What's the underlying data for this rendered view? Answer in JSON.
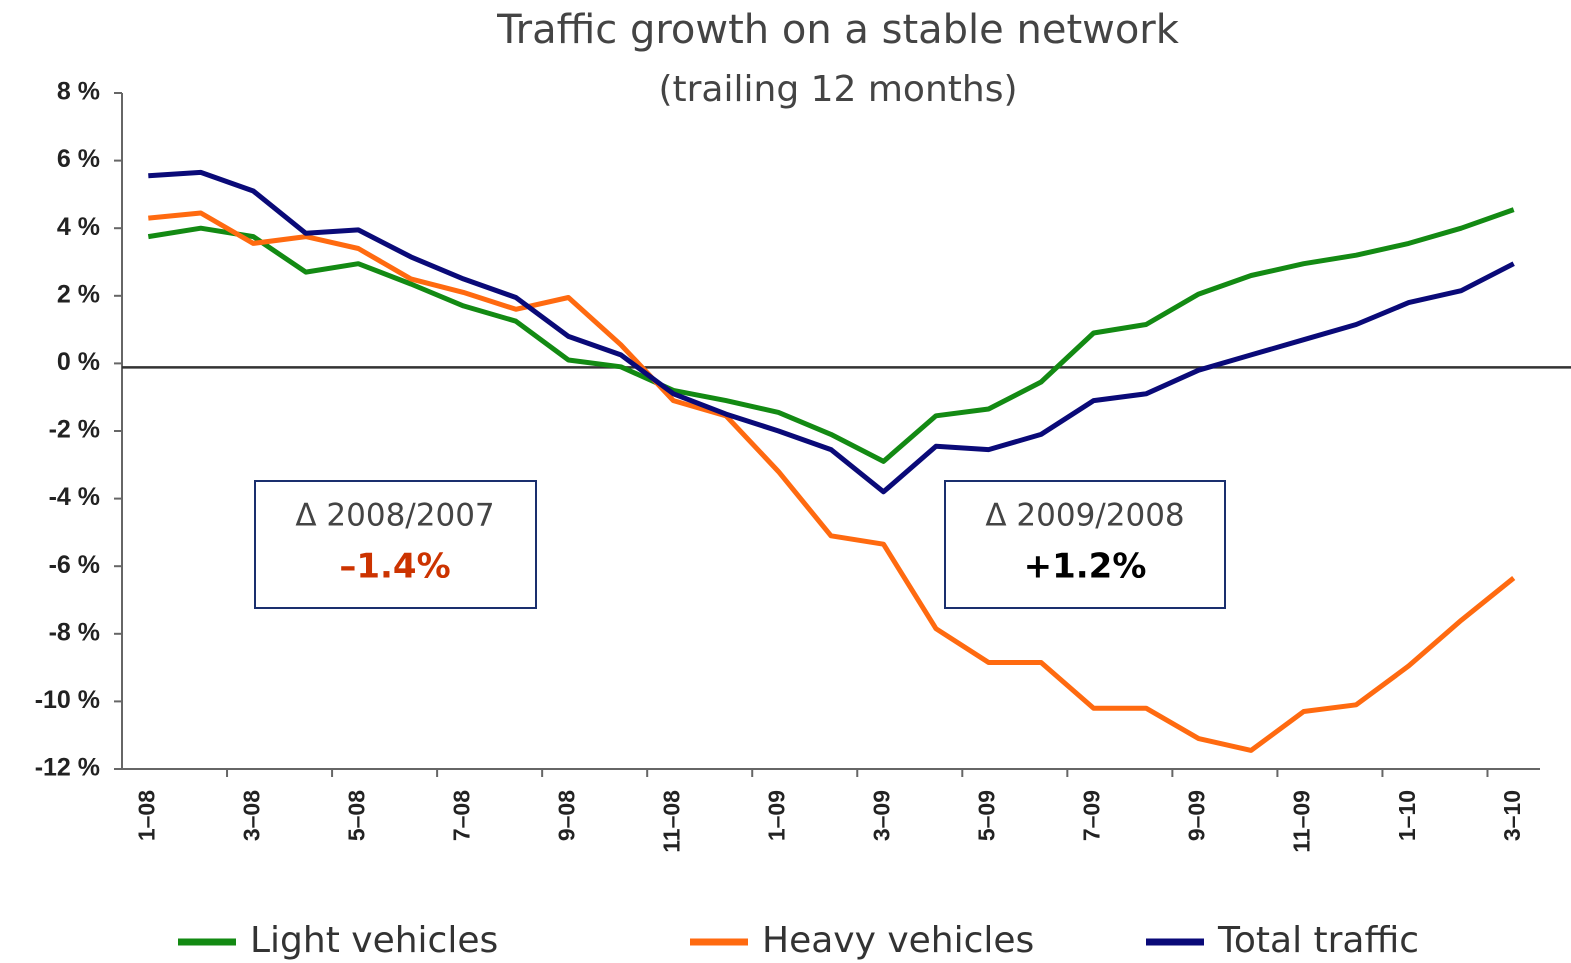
{
  "chart_data": {
    "type": "line",
    "title": "Traffic growth on a stable network",
    "subtitle": "(trailing 12 months)",
    "categories": [
      "1–08",
      null,
      "3–08",
      null,
      "5–08",
      null,
      "7–08",
      null,
      "9–08",
      null,
      "11–08",
      null,
      "1–09",
      null,
      "3–09",
      null,
      "5–09",
      null,
      "7–09",
      null,
      "9–09",
      null,
      "11–09",
      null,
      "1–10",
      null,
      "3–10"
    ],
    "series": [
      {
        "name": "Light vehicles",
        "color": "#138a13",
        "values": [
          3.75,
          4.0,
          3.75,
          2.7,
          2.95,
          2.35,
          1.7,
          1.25,
          0.1,
          -0.1,
          -0.8,
          -1.1,
          -1.45,
          -2.1,
          -2.9,
          -1.55,
          -1.35,
          -0.55,
          0.9,
          1.15,
          2.05,
          2.6,
          2.95,
          3.2,
          3.55,
          4.0,
          4.55
        ]
      },
      {
        "name": "Heavy vehicles",
        "color": "#ff6a10",
        "values": [
          4.3,
          4.45,
          3.55,
          3.75,
          3.4,
          2.5,
          2.1,
          1.6,
          1.95,
          0.55,
          -1.1,
          -1.55,
          -3.2,
          -5.1,
          -5.35,
          -7.85,
          -8.85,
          -8.85,
          -10.2,
          -10.2,
          -11.1,
          -11.45,
          -10.3,
          -10.1,
          -8.95,
          -7.6,
          -6.35
        ]
      },
      {
        "name": "Total traffic",
        "color": "#0a0a78",
        "values": [
          5.55,
          5.65,
          5.1,
          3.85,
          3.95,
          3.15,
          2.5,
          1.95,
          0.8,
          0.25,
          -0.9,
          -1.5,
          -2.0,
          -2.55,
          -3.8,
          -2.45,
          -2.55,
          -2.1,
          -1.1,
          -0.9,
          -0.2,
          0.25,
          0.7,
          1.15,
          1.8,
          2.15,
          2.95
        ]
      }
    ],
    "ylim": [
      -12,
      8
    ],
    "yticks": [
      {
        "value": -12,
        "label": "-12 %"
      },
      {
        "value": -10,
        "label": "-10 %"
      },
      {
        "value": -8,
        "label": "-8 %"
      },
      {
        "value": -6,
        "label": "-6 %"
      },
      {
        "value": -4,
        "label": "-4 %"
      },
      {
        "value": -2,
        "label": "-2 %"
      },
      {
        "value": 0,
        "label": "0 %"
      },
      {
        "value": 2,
        "label": "2 %"
      },
      {
        "value": 4,
        "label": "4 %"
      },
      {
        "value": 6,
        "label": "6 %"
      },
      {
        "value": 8,
        "label": "8 %"
      }
    ],
    "grid": false,
    "legend": "bottom",
    "annotations": [
      {
        "text": "Δ 2008/2007",
        "value": "–1.4%",
        "color": "#cc3300"
      },
      {
        "text": "Δ 2009/2008",
        "value": "+1.2%",
        "color": "#000000"
      }
    ]
  }
}
